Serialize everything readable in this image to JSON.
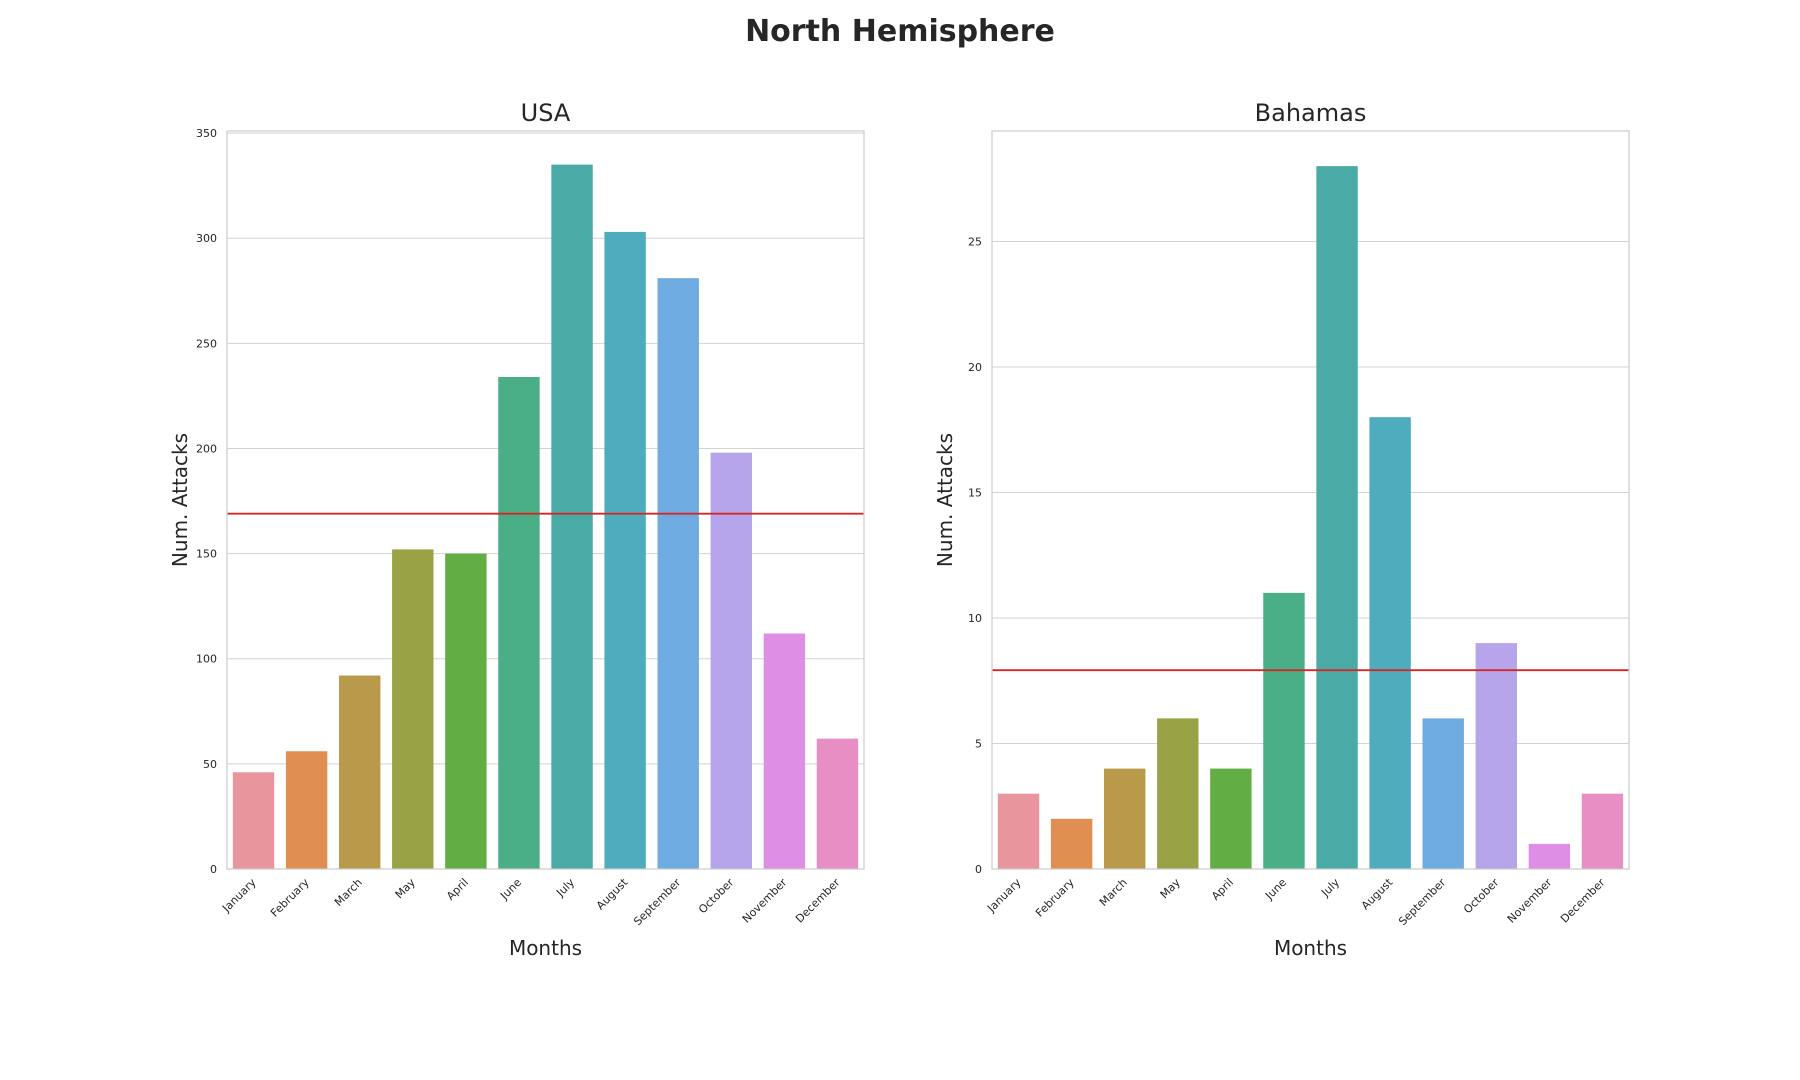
{
  "title": "North Hemisphere",
  "chart_data": [
    {
      "type": "bar",
      "title": "USA",
      "xlabel": "Months",
      "ylabel": "Num. Attacks",
      "categories": [
        "January",
        "February",
        "March",
        "May",
        "April",
        "June",
        "July",
        "August",
        "September",
        "October",
        "November",
        "December"
      ],
      "values": [
        46,
        56,
        92,
        152,
        150,
        234,
        335,
        303,
        281,
        198,
        112,
        62
      ],
      "ylim": [
        0,
        351
      ],
      "yticks": [
        0,
        50,
        100,
        150,
        200,
        250,
        300,
        350
      ],
      "mean_line": 169,
      "grid": true
    },
    {
      "type": "bar",
      "title": "Bahamas",
      "xlabel": "Months",
      "ylabel": "Num. Attacks",
      "categories": [
        "January",
        "February",
        "March",
        "May",
        "April",
        "June",
        "July",
        "August",
        "September",
        "October",
        "November",
        "December"
      ],
      "values": [
        3,
        2,
        4,
        6,
        4,
        11,
        28,
        18,
        6,
        9,
        1,
        3
      ],
      "ylim": [
        0,
        29.4
      ],
      "yticks": [
        0,
        5,
        10,
        15,
        20,
        25
      ],
      "mean_line": 7.92,
      "grid": true
    }
  ],
  "colors": {
    "bars": [
      "#e8959d",
      "#e08e52",
      "#b89a4a",
      "#99a244",
      "#62ae45",
      "#4aae87",
      "#4aaaa6",
      "#4facbd",
      "#6eabe0",
      "#b6a5ea",
      "#df8ee6",
      "#e78ec5"
    ],
    "mean_line": "#d62728"
  }
}
